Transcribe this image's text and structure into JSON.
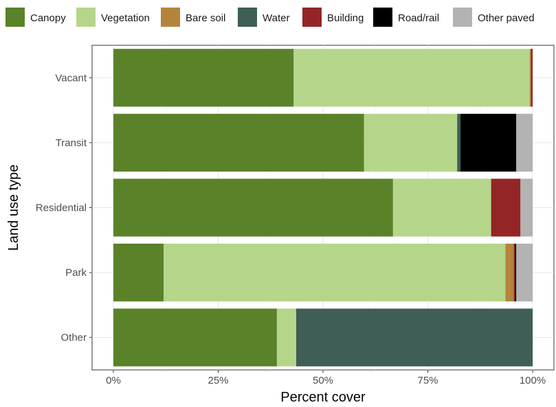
{
  "chart_data": {
    "type": "bar",
    "orientation": "horizontal",
    "stacked": true,
    "xlabel": "Percent cover",
    "ylabel": "Land use type",
    "xlim": [
      0,
      100
    ],
    "x_ticks": [
      "0%",
      "25%",
      "50%",
      "75%",
      "100%"
    ],
    "x_tick_values": [
      0,
      25,
      50,
      75,
      100
    ],
    "grid": true,
    "legend_position": "top",
    "categories": [
      "Vacant",
      "Transit",
      "Residential",
      "Park",
      "Other"
    ],
    "series": [
      {
        "name": "Canopy",
        "color": "#5a8229",
        "values": [
          43.0,
          59.8,
          66.7,
          12.0,
          39.0
        ]
      },
      {
        "name": "Vegetation",
        "color": "#b5d68a",
        "values": [
          56.3,
          22.2,
          23.4,
          81.5,
          4.6
        ]
      },
      {
        "name": "Bare soil",
        "color": "#b5843c",
        "values": [
          0.3,
          0.0,
          0.0,
          2.0,
          0.0
        ]
      },
      {
        "name": "Water",
        "color": "#3f5e56",
        "values": [
          0.0,
          0.8,
          0.0,
          0.0,
          56.4
        ]
      },
      {
        "name": "Building",
        "color": "#932527",
        "values": [
          0.4,
          0.0,
          7.0,
          0.3,
          0.0
        ]
      },
      {
        "name": "Road/rail",
        "color": "#000000",
        "values": [
          0.0,
          13.3,
          0.0,
          0.3,
          0.0
        ]
      },
      {
        "name": "Other paved",
        "color": "#b3b3b3",
        "values": [
          0.0,
          3.9,
          2.9,
          3.9,
          0.0
        ]
      }
    ]
  }
}
